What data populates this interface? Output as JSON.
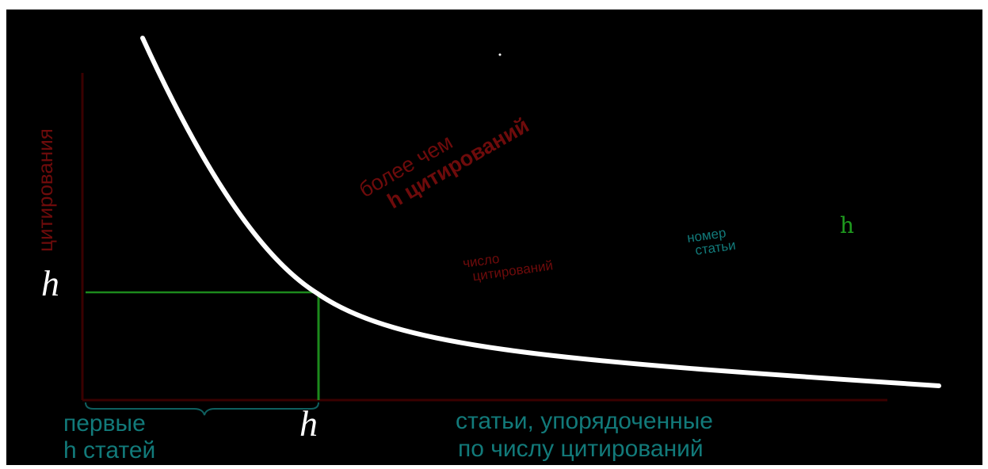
{
  "labels": {
    "y_axis": "цитирования",
    "more_than": "более чем",
    "h_citations": "h цитирований",
    "citation_count": [
      "число",
      "цитирований"
    ],
    "paper_number": [
      "номер",
      "статьи"
    ],
    "h_green": "h",
    "h_left": "h",
    "h_bottom": "h",
    "first_h": [
      "первые",
      "h статей"
    ],
    "x_axis": [
      "статьи, упорядоченные",
      "по числу цитирований"
    ]
  },
  "colors": {
    "background": "#000000",
    "curve": "#ffffff",
    "axis": "#3a0000",
    "guide": "#1c8a1c",
    "red_text": "#6e0b0b",
    "teal_text": "#127a7a",
    "green_text": "#1e9a1e"
  }
}
